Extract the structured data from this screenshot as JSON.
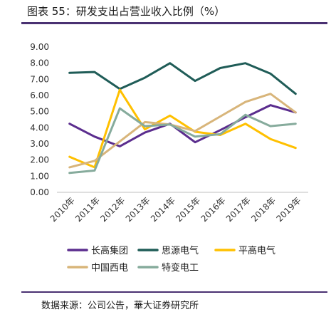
{
  "header": {
    "title": "图表 55：研发支出占营业收入比例（%）"
  },
  "footer": {
    "source": "数据来源：公司公告，華大证券研究所"
  },
  "chart_data": {
    "type": "line",
    "title": "图表 55：研发支出占营业收入比例（%）",
    "xlabel": "",
    "ylabel": "",
    "x": [
      "2010年",
      "2011年",
      "2012年",
      "2013年",
      "2014年",
      "2015年",
      "2016年",
      "2017年",
      "2018年",
      "2019年"
    ],
    "y_ticks": [
      "0.00",
      "1.00",
      "2.00",
      "3.00",
      "4.00",
      "5.00",
      "6.00",
      "7.00",
      "8.00",
      "9.00"
    ],
    "ylim": [
      0,
      9
    ],
    "grid": false,
    "legend_position": "bottom",
    "series": [
      {
        "name": "长高集团",
        "color": "#5b2d8e",
        "values": [
          4.25,
          3.45,
          2.85,
          3.7,
          4.25,
          3.1,
          3.85,
          4.65,
          5.4,
          4.95
        ]
      },
      {
        "name": "思源电气",
        "color": "#1f5c57",
        "values": [
          7.4,
          7.45,
          6.4,
          7.1,
          8.0,
          6.9,
          7.7,
          8.0,
          7.35,
          6.1
        ]
      },
      {
        "name": "平高电气",
        "color": "#ffc000",
        "values": [
          2.2,
          1.55,
          6.35,
          3.9,
          4.75,
          3.75,
          3.55,
          4.25,
          3.3,
          2.75
        ]
      },
      {
        "name": "中国西电",
        "color": "#d8b57a",
        "values": [
          1.55,
          1.95,
          3.15,
          4.35,
          4.2,
          3.8,
          4.7,
          5.6,
          6.1,
          4.95
        ]
      },
      {
        "name": "特变电工",
        "color": "#86ab9c",
        "values": [
          1.2,
          1.35,
          5.2,
          4.1,
          4.2,
          3.45,
          3.6,
          4.8,
          4.1,
          4.25
        ]
      }
    ]
  }
}
